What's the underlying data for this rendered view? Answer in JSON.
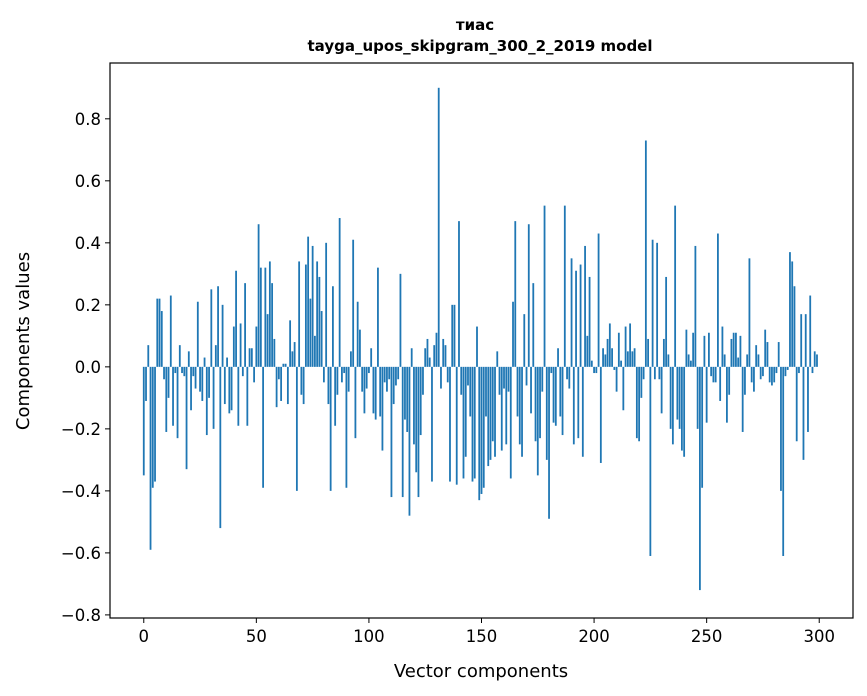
{
  "chart_data": {
    "type": "bar",
    "title": "тиас",
    "subtitle": "tayga_upos_skipgram_300_2_2019 model",
    "xlabel": "Vector components",
    "ylabel": "Components values",
    "xlim": [
      -15,
      315
    ],
    "ylim": [
      -0.81,
      0.98
    ],
    "xticks": [
      0,
      50,
      100,
      150,
      200,
      250,
      300
    ],
    "yticks": [
      -0.8,
      -0.6,
      -0.4,
      -0.2,
      0.0,
      0.2,
      0.4,
      0.6,
      0.8
    ],
    "ytick_labels": [
      "−0.8",
      "−0.6",
      "−0.4",
      "−0.2",
      "0.0",
      "0.2",
      "0.4",
      "0.6",
      "0.8"
    ],
    "color": "#1f77b4",
    "x": [
      0,
      1,
      2,
      3,
      4,
      5,
      6,
      7,
      8,
      9,
      10,
      11,
      12,
      13,
      14,
      15,
      16,
      17,
      18,
      19,
      20,
      21,
      22,
      23,
      24,
      25,
      26,
      27,
      28,
      29,
      30,
      31,
      32,
      33,
      34,
      35,
      36,
      37,
      38,
      39,
      40,
      41,
      42,
      43,
      44,
      45,
      46,
      47,
      48,
      49,
      50,
      51,
      52,
      53,
      54,
      55,
      56,
      57,
      58,
      59,
      60,
      61,
      62,
      63,
      64,
      65,
      66,
      67,
      68,
      69,
      70,
      71,
      72,
      73,
      74,
      75,
      76,
      77,
      78,
      79,
      80,
      81,
      82,
      83,
      84,
      85,
      86,
      87,
      88,
      89,
      90,
      91,
      92,
      93,
      94,
      95,
      96,
      97,
      98,
      99,
      100,
      101,
      102,
      103,
      104,
      105,
      106,
      107,
      108,
      109,
      110,
      111,
      112,
      113,
      114,
      115,
      116,
      117,
      118,
      119,
      120,
      121,
      122,
      123,
      124,
      125,
      126,
      127,
      128,
      129,
      130,
      131,
      132,
      133,
      134,
      135,
      136,
      137,
      138,
      139,
      140,
      141,
      142,
      143,
      144,
      145,
      146,
      147,
      148,
      149,
      150,
      151,
      152,
      153,
      154,
      155,
      156,
      157,
      158,
      159,
      160,
      161,
      162,
      163,
      164,
      165,
      166,
      167,
      168,
      169,
      170,
      171,
      172,
      173,
      174,
      175,
      176,
      177,
      178,
      179,
      180,
      181,
      182,
      183,
      184,
      185,
      186,
      187,
      188,
      189,
      190,
      191,
      192,
      193,
      194,
      195,
      196,
      197,
      198,
      199,
      200,
      201,
      202,
      203,
      204,
      205,
      206,
      207,
      208,
      209,
      210,
      211,
      212,
      213,
      214,
      215,
      216,
      217,
      218,
      219,
      220,
      221,
      222,
      223,
      224,
      225,
      226,
      227,
      228,
      229,
      230,
      231,
      232,
      233,
      234,
      235,
      236,
      237,
      238,
      239,
      240,
      241,
      242,
      243,
      244,
      245,
      246,
      247,
      248,
      249,
      250,
      251,
      252,
      253,
      254,
      255,
      256,
      257,
      258,
      259,
      260,
      261,
      262,
      263,
      264,
      265,
      266,
      267,
      268,
      269,
      270,
      271,
      272,
      273,
      274,
      275,
      276,
      277,
      278,
      279,
      280,
      281,
      282,
      283,
      284,
      285,
      286,
      287,
      288,
      289,
      290,
      291,
      292,
      293,
      294,
      295,
      296,
      297,
      298,
      299
    ],
    "values": [
      -0.35,
      -0.11,
      0.07,
      -0.59,
      -0.39,
      -0.37,
      0.22,
      0.22,
      0.18,
      -0.04,
      -0.21,
      -0.1,
      0.23,
      -0.19,
      -0.02,
      -0.23,
      0.07,
      -0.02,
      -0.03,
      -0.33,
      0.05,
      -0.14,
      -0.03,
      -0.07,
      0.21,
      -0.08,
      -0.11,
      0.03,
      -0.22,
      -0.1,
      0.25,
      -0.2,
      0.07,
      0.26,
      -0.52,
      0.2,
      -0.12,
      0.03,
      -0.15,
      -0.14,
      0.13,
      0.31,
      -0.19,
      0.14,
      -0.03,
      0.27,
      -0.19,
      0.06,
      0.06,
      -0.05,
      0.13,
      0.46,
      0.32,
      -0.39,
      0.32,
      0.17,
      0.34,
      0.27,
      0.09,
      -0.13,
      -0.04,
      -0.11,
      0.01,
      0.01,
      -0.12,
      0.15,
      0.05,
      0.08,
      -0.4,
      0.34,
      -0.09,
      -0.12,
      0.33,
      0.42,
      0.22,
      0.39,
      0.1,
      0.34,
      0.29,
      0.18,
      -0.05,
      0.4,
      -0.12,
      -0.4,
      0.26,
      -0.19,
      -0.09,
      0.48,
      -0.05,
      -0.02,
      -0.39,
      -0.08,
      0.05,
      0.41,
      -0.23,
      0.21,
      0.12,
      -0.08,
      -0.15,
      -0.07,
      -0.02,
      0.06,
      -0.15,
      -0.17,
      0.32,
      -0.16,
      -0.27,
      -0.05,
      -0.08,
      -0.04,
      -0.42,
      -0.12,
      -0.06,
      -0.04,
      0.3,
      -0.42,
      -0.17,
      -0.21,
      -0.48,
      0.06,
      -0.25,
      -0.34,
      -0.42,
      -0.22,
      -0.09,
      0.06,
      0.09,
      0.03,
      -0.37,
      0.07,
      0.11,
      0.9,
      -0.07,
      0.09,
      0.07,
      -0.05,
      -0.37,
      0.2,
      0.2,
      -0.38,
      0.47,
      -0.09,
      -0.36,
      -0.29,
      -0.06,
      -0.16,
      -0.37,
      -0.36,
      0.13,
      -0.43,
      -0.41,
      -0.39,
      -0.16,
      -0.32,
      -0.3,
      -0.24,
      -0.29,
      0.05,
      -0.09,
      -0.27,
      -0.07,
      -0.25,
      -0.08,
      -0.36,
      0.21,
      0.47,
      -0.16,
      -0.25,
      -0.29,
      0.17,
      -0.06,
      0.46,
      -0.15,
      0.27,
      -0.24,
      -0.35,
      -0.23,
      -0.08,
      0.52,
      -0.3,
      -0.49,
      -0.02,
      -0.18,
      -0.19,
      0.06,
      -0.16,
      -0.22,
      0.52,
      -0.04,
      -0.07,
      0.35,
      -0.25,
      0.31,
      -0.23,
      0.33,
      -0.29,
      0.39,
      0.1,
      0.29,
      0.02,
      -0.02,
      -0.02,
      0.43,
      -0.31,
      0.06,
      0.04,
      0.09,
      0.14,
      0.06,
      -0.01,
      -0.08,
      0.11,
      0.02,
      -0.14,
      0.13,
      0.05,
      0.14,
      0.05,
      0.06,
      -0.23,
      -0.24,
      -0.1,
      -0.04,
      0.73,
      0.09,
      -0.61,
      0.41,
      -0.04,
      0.4,
      -0.04,
      -0.15,
      0.09,
      0.29,
      0.04,
      -0.2,
      -0.25,
      0.52,
      -0.17,
      -0.2,
      -0.27,
      -0.29,
      0.12,
      0.04,
      0.02,
      0.11,
      0.39,
      -0.2,
      -0.72,
      -0.39,
      0.1,
      -0.18,
      0.11,
      -0.03,
      -0.05,
      -0.05,
      0.43,
      -0.11,
      0.13,
      0.04,
      -0.18,
      -0.09,
      0.09,
      0.11,
      0.11,
      0.03,
      0.1,
      -0.21,
      -0.09,
      0.04,
      0.35,
      -0.05,
      -0.08,
      0.07,
      0.04,
      -0.04,
      -0.03,
      0.12,
      0.08,
      -0.05,
      -0.06,
      -0.05,
      -0.02,
      0.08,
      -0.4,
      -0.61,
      -0.03,
      -0.01,
      0.37,
      0.34,
      0.26,
      -0.24,
      -0.02,
      0.17,
      -0.3,
      0.17,
      -0.21,
      0.23,
      -0.02,
      0.05,
      0.04
    ]
  }
}
